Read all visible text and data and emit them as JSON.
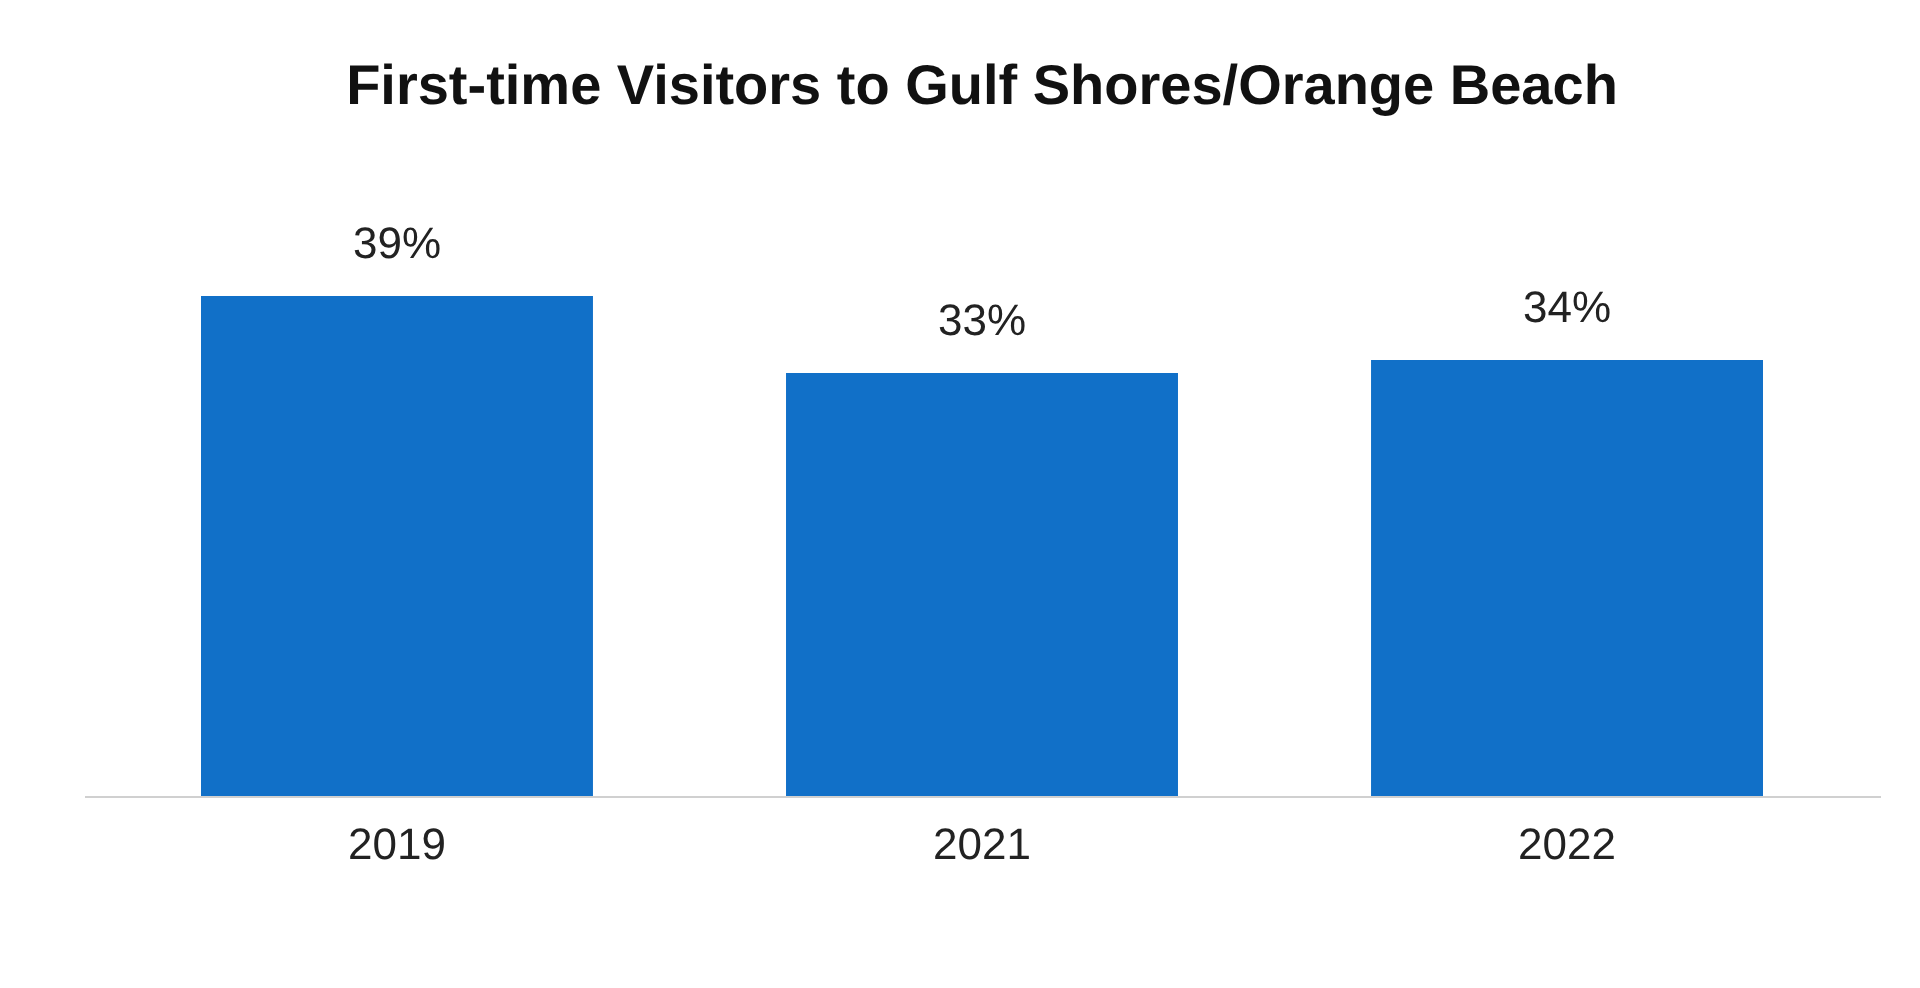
{
  "chart_data": {
    "type": "bar",
    "title": "First-time Visitors to Gulf Shores/Orange Beach",
    "categories": [
      "2019",
      "2021",
      "2022"
    ],
    "values": [
      39,
      33,
      34
    ],
    "value_labels": [
      "39%",
      "33%",
      "34%"
    ],
    "color": "#1170c8",
    "tick_labels": "x"
  }
}
